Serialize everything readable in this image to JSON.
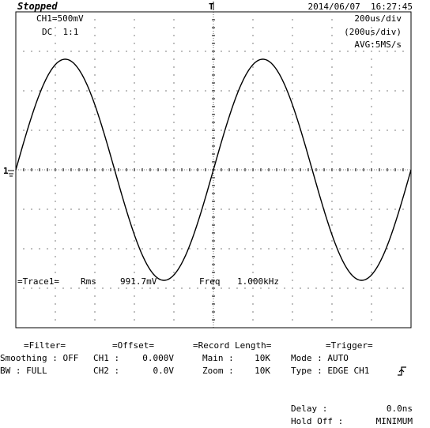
{
  "header": {
    "status": "Stopped",
    "datetime": "2014/06/07  16:27:45"
  },
  "channel": {
    "scale": "CH1=500mV",
    "coupling": "DC  1:1"
  },
  "timebase": {
    "div": "200us/div",
    "div_paren": "(200us/div)",
    "acq": "AVG:5MS/s"
  },
  "measurement": {
    "trace": "=Trace1=",
    "rms_label": "Rms",
    "rms_value": "991.7mV",
    "freq_label": "Freq",
    "freq_value": "1.000kHz"
  },
  "markers": {
    "trigger_top": "T",
    "ch1_marker": "1"
  },
  "filter": {
    "title": "=Filter=",
    "smoothing_label": "Smoothing :",
    "smoothing_value": "OFF",
    "bw_label": "BW :",
    "bw_value": "FULL"
  },
  "offset": {
    "title": "=Offset=",
    "ch1_label": "CH1 :",
    "ch1_value": "0.000V",
    "ch2_label": "CH2 :",
    "ch2_value": "0.0V"
  },
  "record": {
    "title": "=Record Length=",
    "main_label": "Main :",
    "main_value": "10K",
    "zoom_label": "Zoom :",
    "zoom_value": "10K"
  },
  "trigger": {
    "title": "=Trigger=",
    "mode_label": "Mode :",
    "mode_value": "AUTO",
    "type_label": "Type :",
    "type_value": "EDGE CH1",
    "delay_label": "Delay :",
    "delay_value": "0.0ns",
    "holdoff_label": "Hold Off :",
    "holdoff_value": "MINIMUM"
  },
  "waveform": {
    "type": "sine",
    "period_divisions": 5,
    "amplitude_divisions": 2.8,
    "color": "#000000"
  },
  "colors": {
    "background": "#ffffff",
    "grid": "#000000",
    "trace": "#000000"
  }
}
